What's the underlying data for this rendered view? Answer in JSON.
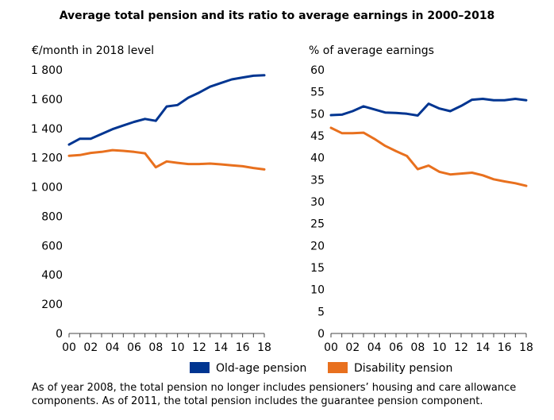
{
  "title": "Average total pension and its ratio to average earnings in 2000–2018",
  "footnote": "As of year 2008, the total pension no longer includes pensioners’ housing and care allowance components. As of 2011, the total pension includes the guarantee pension component.",
  "legend": [
    {
      "name": "Old-age pension",
      "color": "#003591"
    },
    {
      "name": "Disability pension",
      "color": "#e8701e"
    }
  ],
  "chart_data": [
    {
      "type": "line",
      "ylabel": "€/month in 2018 level",
      "categories": [
        "00",
        "01",
        "02",
        "03",
        "04",
        "05",
        "06",
        "07",
        "08",
        "09",
        "10",
        "11",
        "12",
        "13",
        "14",
        "15",
        "16",
        "17",
        "18"
      ],
      "x_tick_labels": [
        "00",
        "02",
        "04",
        "06",
        "08",
        "10",
        "12",
        "14",
        "16",
        "18"
      ],
      "ylim": [
        0,
        1800
      ],
      "y_ticks": [
        0,
        200,
        400,
        600,
        800,
        1000,
        1200,
        1400,
        1600,
        1800
      ],
      "y_tick_labels": [
        "0",
        "200",
        "400",
        "600",
        "800",
        "1 000",
        "1 200",
        "1 400",
        "1 600",
        "1 800"
      ],
      "grid": false,
      "legend_position": "bottom",
      "series": [
        {
          "name": "Old-age pension",
          "color": "#003591",
          "values": [
            1290,
            1330,
            1330,
            1362,
            1395,
            1420,
            1445,
            1465,
            1452,
            1550,
            1560,
            1610,
            1645,
            1685,
            1710,
            1735,
            1748,
            1760,
            1763
          ]
        },
        {
          "name": "Disability pension",
          "color": "#e8701e",
          "values": [
            1213,
            1218,
            1233,
            1240,
            1252,
            1247,
            1240,
            1230,
            1135,
            1175,
            1165,
            1157,
            1157,
            1160,
            1155,
            1148,
            1142,
            1130,
            1120
          ]
        }
      ]
    },
    {
      "type": "line",
      "ylabel": "% of average earnings",
      "categories": [
        "00",
        "01",
        "02",
        "03",
        "04",
        "05",
        "06",
        "07",
        "08",
        "09",
        "10",
        "11",
        "12",
        "13",
        "14",
        "15",
        "16",
        "17",
        "18"
      ],
      "x_tick_labels": [
        "00",
        "02",
        "04",
        "06",
        "08",
        "10",
        "12",
        "14",
        "16",
        "18"
      ],
      "ylim": [
        0,
        60
      ],
      "y_ticks": [
        0,
        5,
        10,
        15,
        20,
        25,
        30,
        35,
        40,
        45,
        50,
        55,
        60
      ],
      "y_tick_labels": [
        "0",
        "5",
        "10",
        "15",
        "20",
        "25",
        "30",
        "35",
        "40",
        "45",
        "50",
        "55",
        "60"
      ],
      "grid": false,
      "legend_position": "bottom",
      "series": [
        {
          "name": "Old-age pension",
          "color": "#003591",
          "values": [
            49.7,
            49.8,
            50.6,
            51.7,
            51.0,
            50.3,
            50.2,
            50.0,
            49.6,
            52.3,
            51.2,
            50.6,
            51.8,
            53.2,
            53.4,
            53.1,
            53.1,
            53.4,
            53.1
          ]
        },
        {
          "name": "Disability pension",
          "color": "#e8701e",
          "values": [
            46.8,
            45.6,
            45.6,
            45.7,
            44.3,
            42.7,
            41.5,
            40.4,
            37.4,
            38.2,
            36.8,
            36.2,
            36.4,
            36.6,
            36.0,
            35.1,
            34.6,
            34.2,
            33.6
          ]
        }
      ]
    }
  ]
}
